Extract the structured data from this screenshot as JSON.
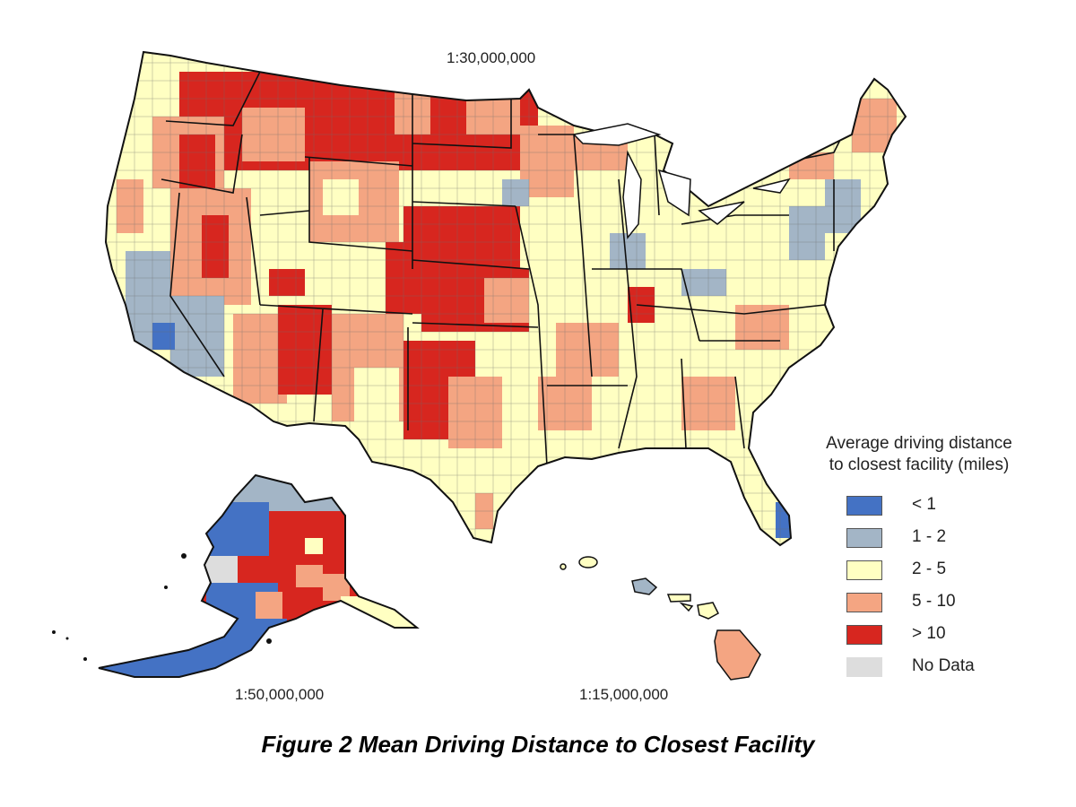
{
  "caption": "Figure 2 Mean Driving Distance to Closest Facility",
  "scales": {
    "conus": "1:30,000,000",
    "alaska": "1:50,000,000",
    "hawaii": "1:15,000,000"
  },
  "legend": {
    "title_line1": "Average driving distance",
    "title_line2": "to closest facility (miles)",
    "items": [
      {
        "label": "< 1",
        "color": "#4472c4"
      },
      {
        "label": "1 - 2",
        "color": "#a3b5c6"
      },
      {
        "label": "2 - 5",
        "color": "#ffffc2"
      },
      {
        "label": "5 - 10",
        "color": "#f4a582"
      },
      {
        "label": "> 10",
        "color": "#d7261f"
      },
      {
        "label": "No Data",
        "color": "#dddddd"
      }
    ]
  },
  "regions": {
    "conus": "contiguous-united-states",
    "alaska": "alaska",
    "hawaii": "hawaii"
  }
}
